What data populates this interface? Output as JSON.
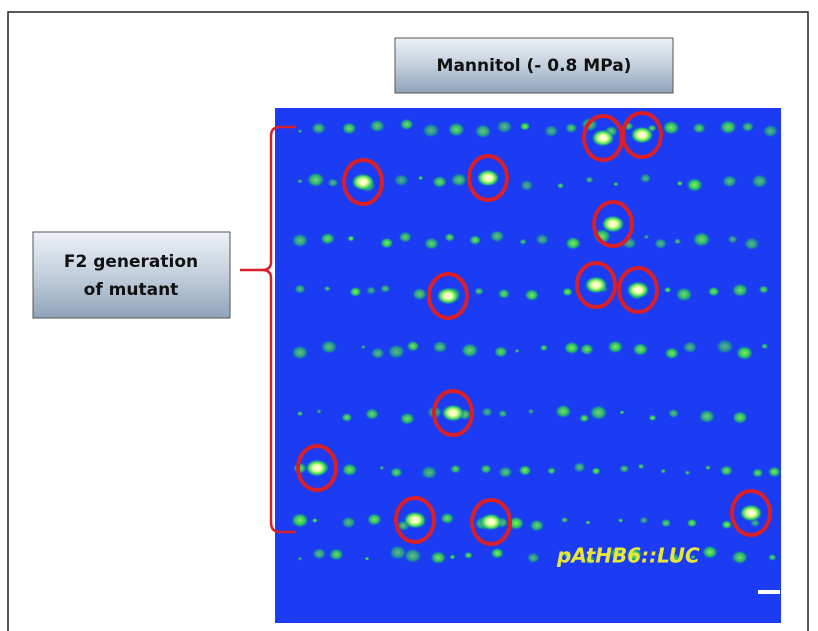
{
  "labels": {
    "treatment": "Mannitol  (- 0.8 MPa)",
    "group_line1": "F2 generation",
    "group_line2": "of mutant",
    "reporter": "pAtHB6::LUC"
  }
}
